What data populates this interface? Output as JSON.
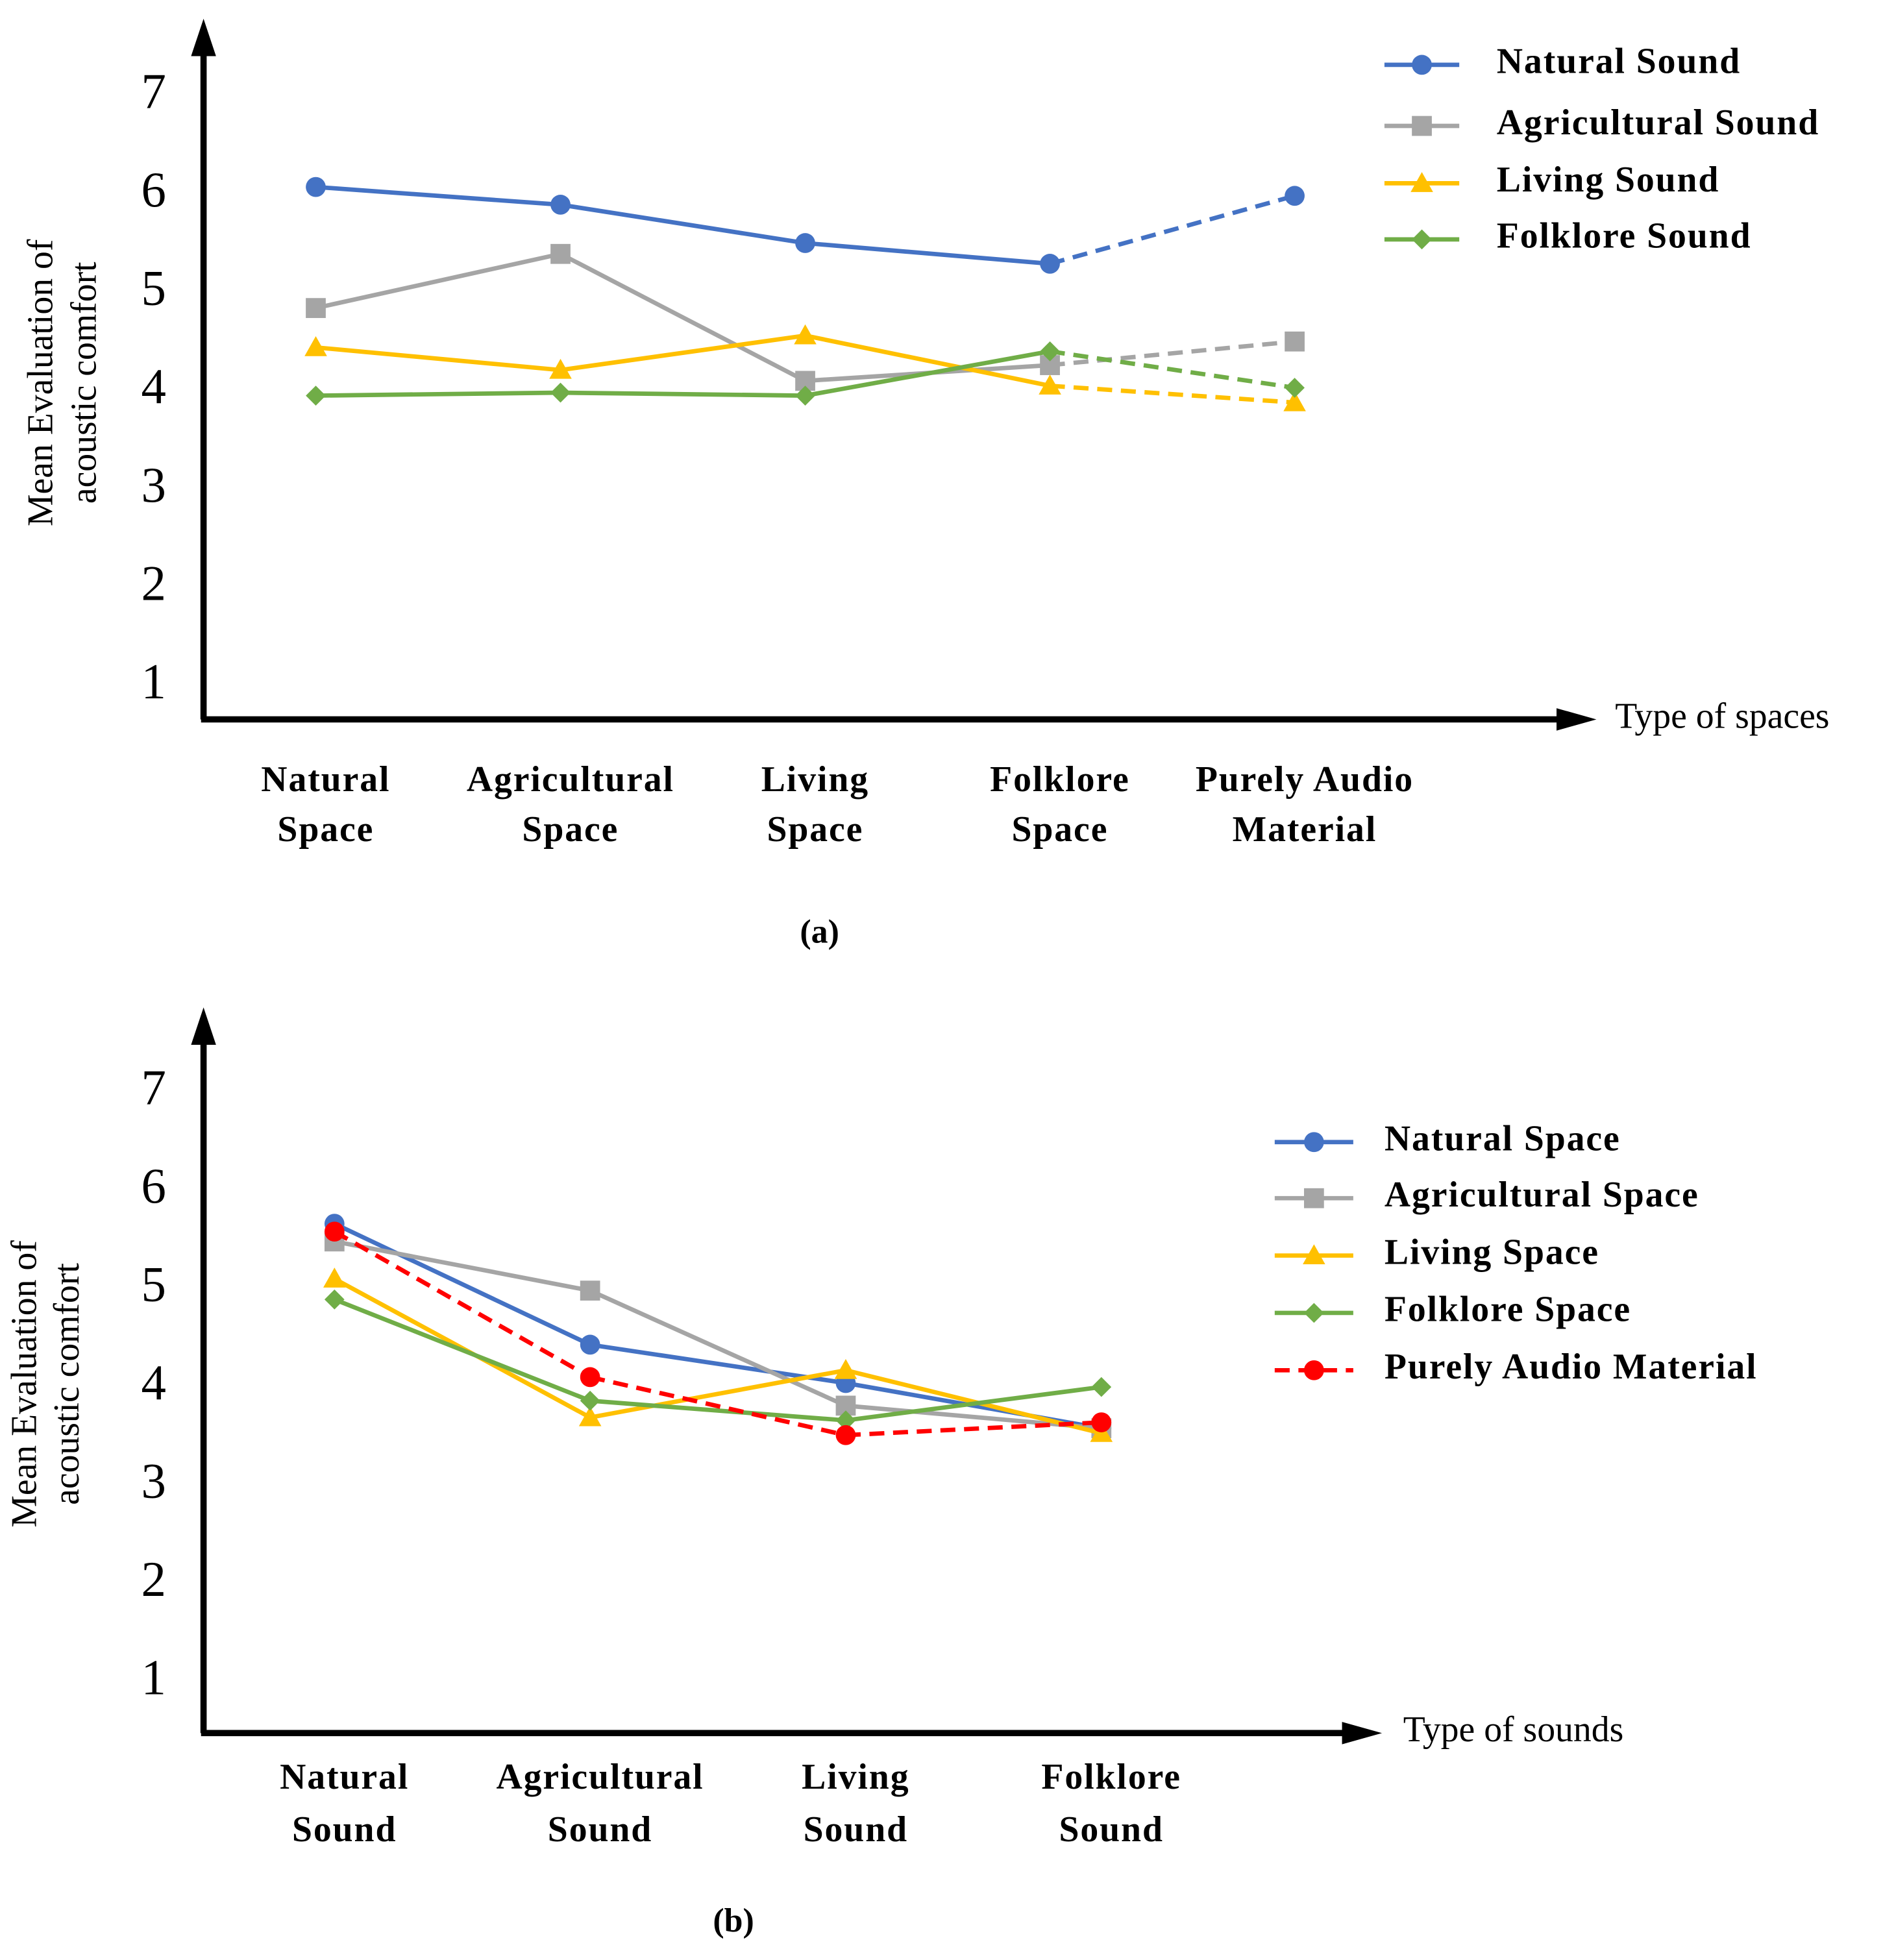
{
  "chart_data": [
    {
      "type": "line",
      "ylabel": [
        "Mean Evaluation of",
        "acoustic comfort"
      ],
      "xlabel": "Type of spaces",
      "caption": "(a)",
      "categories": [
        [
          "Natural",
          "Space"
        ],
        [
          "Agricultural",
          "Space"
        ],
        [
          "Living",
          "Space"
        ],
        [
          "Folklore",
          "Space"
        ],
        [
          "Purely Audio",
          "Material"
        ]
      ],
      "ylim": [
        0.67,
        7.79
      ],
      "yticks": [
        1,
        2,
        3,
        4,
        5,
        6,
        7
      ],
      "grid": false,
      "legend": "upper right",
      "series": [
        {
          "name": "Natural Sound",
          "color": "#4472c4",
          "marker": "circle",
          "segment_styles": [
            "solid",
            "solid",
            "solid",
            "dashed"
          ],
          "values": [
            6.08,
            5.9,
            5.51,
            5.3,
            5.99
          ]
        },
        {
          "name": "Agricultural Sound",
          "color": "#a5a5a5",
          "marker": "square",
          "segment_styles": [
            "solid",
            "solid",
            "solid",
            "dashed"
          ],
          "values": [
            4.85,
            5.4,
            4.11,
            4.27,
            4.51
          ]
        },
        {
          "name": "Living Sound",
          "color": "#ffc000",
          "marker": "triangle",
          "segment_styles": [
            "solid",
            "solid",
            "solid",
            "dashed"
          ],
          "values": [
            4.45,
            4.22,
            4.57,
            4.06,
            3.89
          ]
        },
        {
          "name": "Folklore Sound",
          "color": "#70ad47",
          "marker": "diamond",
          "segment_styles": [
            "solid",
            "solid",
            "solid",
            "dashed"
          ],
          "values": [
            3.96,
            3.99,
            3.96,
            4.41,
            4.04
          ]
        }
      ]
    },
    {
      "type": "line",
      "ylabel": [
        "Mean Evaluation of",
        "acoustic comfort"
      ],
      "xlabel": "Type of sounds",
      "caption": "(b)",
      "categories": [
        [
          "Natural",
          "Sound"
        ],
        [
          "Agricultural",
          "Sound"
        ],
        [
          "Living",
          "Sound"
        ],
        [
          "Folklore",
          "Sound"
        ]
      ],
      "ylim": [
        0.49,
        7.87
      ],
      "yticks": [
        1,
        2,
        3,
        4,
        5,
        6,
        7
      ],
      "grid": false,
      "legend": "right",
      "series": [
        {
          "name": "Natural Space",
          "color": "#4472c4",
          "marker": "circle",
          "segment_styles": [
            "solid",
            "solid",
            "solid"
          ],
          "values": [
            5.67,
            4.44,
            4.05,
            3.59
          ]
        },
        {
          "name": "Agricultural Space",
          "color": "#a5a5a5",
          "marker": "square",
          "segment_styles": [
            "solid",
            "solid",
            "solid"
          ],
          "values": [
            5.49,
            4.99,
            3.82,
            3.59
          ]
        },
        {
          "name": "Living Space",
          "color": "#ffc000",
          "marker": "triangle",
          "segment_styles": [
            "solid",
            "solid",
            "solid"
          ],
          "values": [
            5.11,
            3.7,
            4.18,
            3.54
          ]
        },
        {
          "name": "Folklore Space",
          "color": "#70ad47",
          "marker": "diamond",
          "segment_styles": [
            "solid",
            "solid",
            "solid"
          ],
          "values": [
            4.9,
            3.87,
            3.67,
            4.01
          ]
        },
        {
          "name": "Purely Audio Material",
          "color": "#ff0000",
          "marker": "circle",
          "segment_styles": [
            "dashed",
            "dashed",
            "dashed"
          ],
          "values": [
            5.59,
            4.11,
            3.52,
            3.65
          ]
        }
      ]
    }
  ]
}
